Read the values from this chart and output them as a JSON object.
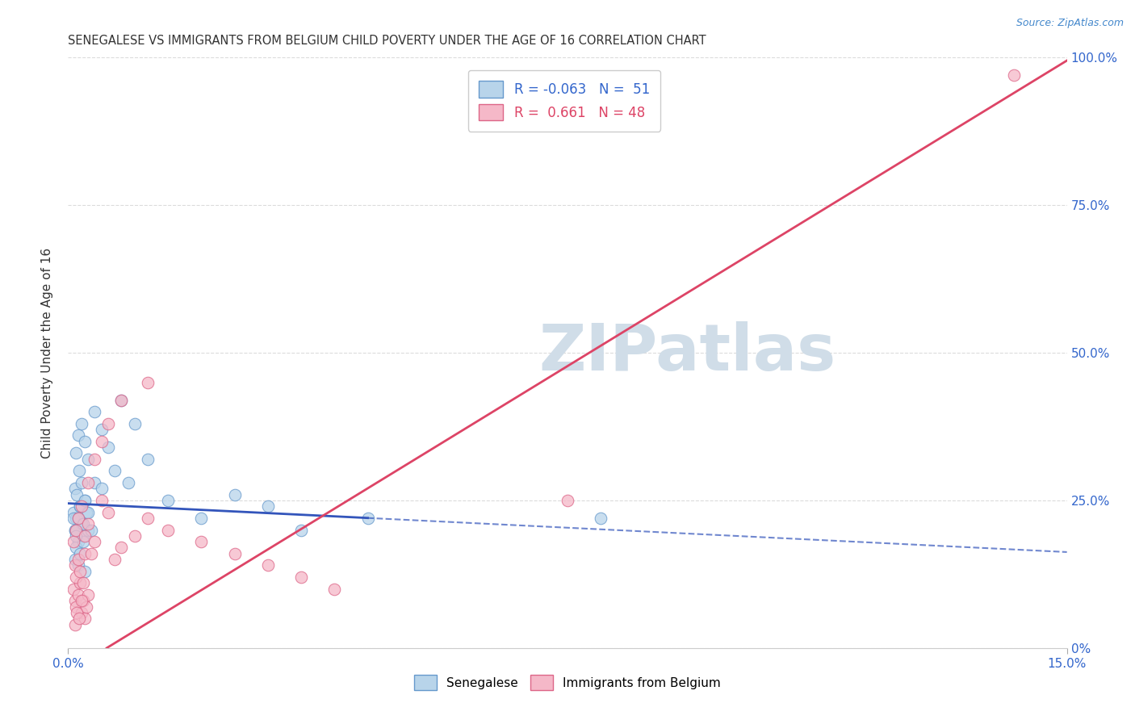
{
  "title": "SENEGALESE VS IMMIGRANTS FROM BELGIUM CHILD POVERTY UNDER THE AGE OF 16 CORRELATION CHART",
  "source": "Source: ZipAtlas.com",
  "ylabel": "Child Poverty Under the Age of 16",
  "xlim": [
    0.0,
    15.0
  ],
  "ylim": [
    0.0,
    100.0
  ],
  "ytick_values": [
    0,
    25,
    50,
    75,
    100
  ],
  "right_ytick_labels": [
    "0%",
    "25.0%",
    "50.0%",
    "75.0%",
    "100.0%"
  ],
  "series1_name": "Senegalese",
  "series2_name": "Immigrants from Belgium",
  "series1_color": "#b8d4ea",
  "series2_color": "#f5b8c8",
  "series1_edge_color": "#6699cc",
  "series2_edge_color": "#dd6688",
  "line1_color": "#3355bb",
  "line2_color": "#dd4466",
  "background_color": "#ffffff",
  "grid_color": "#cccccc",
  "watermark_text": "ZIPatlas",
  "watermark_color": "#d0dde8",
  "series1_x": [
    0.08,
    0.1,
    0.12,
    0.15,
    0.18,
    0.2,
    0.22,
    0.25,
    0.28,
    0.3,
    0.1,
    0.12,
    0.15,
    0.18,
    0.22,
    0.25,
    0.1,
    0.13,
    0.17,
    0.2,
    0.08,
    0.1,
    0.12,
    0.15,
    0.18,
    0.22,
    0.25,
    0.3,
    0.35,
    0.4,
    0.12,
    0.15,
    0.2,
    0.25,
    0.3,
    0.4,
    0.5,
    0.6,
    0.8,
    1.0,
    0.5,
    0.7,
    0.9,
    1.2,
    1.5,
    2.0,
    2.5,
    3.0,
    3.5,
    4.5,
    8.0
  ],
  "series1_y": [
    23,
    20,
    22,
    18,
    24,
    21,
    19,
    25,
    23,
    20,
    15,
    17,
    14,
    16,
    18,
    13,
    27,
    26,
    30,
    28,
    22,
    20,
    19,
    22,
    24,
    21,
    25,
    23,
    20,
    28,
    33,
    36,
    38,
    35,
    32,
    40,
    37,
    34,
    42,
    38,
    27,
    30,
    28,
    32,
    25,
    22,
    26,
    24,
    20,
    22,
    22
  ],
  "series2_x": [
    0.08,
    0.1,
    0.12,
    0.15,
    0.18,
    0.2,
    0.22,
    0.25,
    0.28,
    0.3,
    0.1,
    0.12,
    0.15,
    0.18,
    0.22,
    0.25,
    0.1,
    0.13,
    0.17,
    0.2,
    0.08,
    0.12,
    0.15,
    0.2,
    0.25,
    0.3,
    0.35,
    0.4,
    0.5,
    0.6,
    0.7,
    0.8,
    1.0,
    1.2,
    1.5,
    2.0,
    2.5,
    3.0,
    3.5,
    4.0,
    0.3,
    0.4,
    0.5,
    0.6,
    0.8,
    1.2,
    7.5,
    14.2
  ],
  "series2_y": [
    10,
    8,
    7,
    9,
    11,
    6,
    8,
    5,
    7,
    9,
    14,
    12,
    15,
    13,
    11,
    16,
    4,
    6,
    5,
    8,
    18,
    20,
    22,
    24,
    19,
    21,
    16,
    18,
    25,
    23,
    15,
    17,
    19,
    22,
    20,
    18,
    16,
    14,
    12,
    10,
    28,
    32,
    35,
    38,
    42,
    45,
    25,
    97
  ],
  "line1_intercept": 24.5,
  "line1_slope": -0.55,
  "line1_solid_end": 4.5,
  "line2_intercept": -4.0,
  "line2_slope": 6.9,
  "marker_size": 110,
  "legend_R1": "R = -0.063",
  "legend_N1": "N =  51",
  "legend_R2": "R =  0.661",
  "legend_N2": "N = 48"
}
